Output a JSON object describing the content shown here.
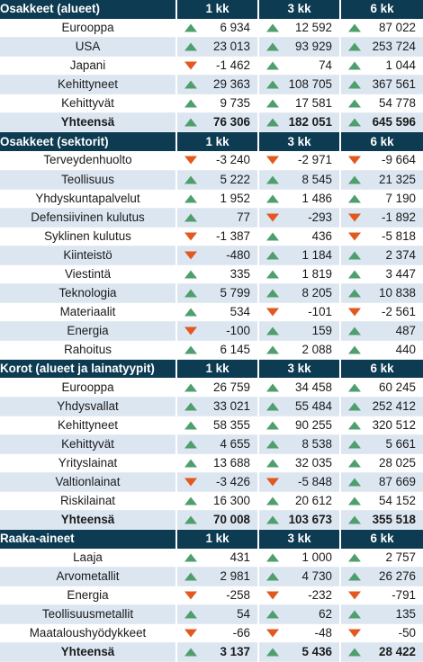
{
  "colors": {
    "header_bg": "#0d3b52",
    "row_alt_bg": "#dce6f1",
    "up": "#4f9e6e",
    "down": "#e2581f"
  },
  "sections": [
    {
      "id": "osakkeet-alueet",
      "title": "Osakkeet (alueet)",
      "periods": [
        "1 kk",
        "3 kk",
        "6 kk"
      ],
      "rows": [
        {
          "label": "Eurooppa",
          "values": [
            "6 934",
            "12 592",
            "87 022"
          ],
          "dirs": [
            "up",
            "up",
            "up"
          ]
        },
        {
          "label": "USA",
          "values": [
            "23 013",
            "93 929",
            "253 724"
          ],
          "dirs": [
            "up",
            "up",
            "up"
          ]
        },
        {
          "label": "Japani",
          "values": [
            "-1 462",
            "74",
            "1 044"
          ],
          "dirs": [
            "down",
            "up",
            "up"
          ]
        },
        {
          "label": "Kehittyneet",
          "values": [
            "29 363",
            "108 705",
            "367 561"
          ],
          "dirs": [
            "up",
            "up",
            "up"
          ]
        },
        {
          "label": "Kehittyvät",
          "values": [
            "9 735",
            "17 581",
            "54 778"
          ],
          "dirs": [
            "up",
            "up",
            "up"
          ]
        },
        {
          "label": "Yhteensä",
          "values": [
            "76 306",
            "182 051",
            "645 596"
          ],
          "dirs": [
            "up",
            "up",
            "up"
          ],
          "total": true
        }
      ]
    },
    {
      "id": "osakkeet-sektorit",
      "title": "Osakkeet (sektorit)",
      "periods": [
        "1 kk",
        "3 kk",
        "6 kk"
      ],
      "rows": [
        {
          "label": "Terveydenhuolto",
          "values": [
            "-3 240",
            "-2 971",
            "-9 664"
          ],
          "dirs": [
            "down",
            "down",
            "down"
          ]
        },
        {
          "label": "Teollisuus",
          "values": [
            "5 222",
            "8 545",
            "21 325"
          ],
          "dirs": [
            "up",
            "up",
            "up"
          ]
        },
        {
          "label": "Yhdyskuntapalvelut",
          "values": [
            "1 952",
            "1 486",
            "7 190"
          ],
          "dirs": [
            "up",
            "up",
            "up"
          ]
        },
        {
          "label": "Defensiivinen kulutus",
          "values": [
            "77",
            "-293",
            "-1 892"
          ],
          "dirs": [
            "up",
            "down",
            "down"
          ]
        },
        {
          "label": "Syklinen kulutus",
          "values": [
            "-1 387",
            "436",
            "-5 818"
          ],
          "dirs": [
            "down",
            "up",
            "down"
          ]
        },
        {
          "label": "Kiinteistö",
          "values": [
            "-480",
            "1 184",
            "2 374"
          ],
          "dirs": [
            "down",
            "up",
            "up"
          ]
        },
        {
          "label": "Viestintä",
          "values": [
            "335",
            "1 819",
            "3 447"
          ],
          "dirs": [
            "up",
            "up",
            "up"
          ]
        },
        {
          "label": "Teknologia",
          "values": [
            "5 799",
            "8 205",
            "10 838"
          ],
          "dirs": [
            "up",
            "up",
            "up"
          ]
        },
        {
          "label": "Materiaalit",
          "values": [
            "534",
            "-101",
            "-2 561"
          ],
          "dirs": [
            "up",
            "down",
            "down"
          ]
        },
        {
          "label": "Energia",
          "values": [
            "-100",
            "159",
            "487"
          ],
          "dirs": [
            "down",
            "up",
            "up"
          ]
        },
        {
          "label": "Rahoitus",
          "values": [
            "6 145",
            "2 088",
            "440"
          ],
          "dirs": [
            "up",
            "up",
            "up"
          ]
        }
      ]
    },
    {
      "id": "korot",
      "title": "Korot (alueet ja lainatyypit)",
      "periods": [
        "1 kk",
        "3 kk",
        "6 kk"
      ],
      "rows": [
        {
          "label": "Eurooppa",
          "values": [
            "26 759",
            "34 458",
            "60 245"
          ],
          "dirs": [
            "up",
            "up",
            "up"
          ]
        },
        {
          "label": "Yhdysvallat",
          "values": [
            "33 021",
            "55 484",
            "252 412"
          ],
          "dirs": [
            "up",
            "up",
            "up"
          ]
        },
        {
          "label": "Kehittyneet",
          "values": [
            "58 355",
            "90 255",
            "320 512"
          ],
          "dirs": [
            "up",
            "up",
            "up"
          ]
        },
        {
          "label": "Kehittyvät",
          "values": [
            "4 655",
            "8 538",
            "5 661"
          ],
          "dirs": [
            "up",
            "up",
            "up"
          ]
        },
        {
          "label": "Yrityslainat",
          "values": [
            "13 688",
            "32 035",
            "28 025"
          ],
          "dirs": [
            "up",
            "up",
            "up"
          ]
        },
        {
          "label": "Valtionlainat",
          "values": [
            "-3 426",
            "-5 848",
            "87 669"
          ],
          "dirs": [
            "down",
            "down",
            "up"
          ]
        },
        {
          "label": "Riskilainat",
          "values": [
            "16 300",
            "20 612",
            "54 152"
          ],
          "dirs": [
            "up",
            "up",
            "up"
          ]
        },
        {
          "label": "Yhteensä",
          "values": [
            "70 008",
            "103 673",
            "355 518"
          ],
          "dirs": [
            "up",
            "up",
            "up"
          ],
          "total": true
        }
      ]
    },
    {
      "id": "raaka-aineet",
      "title": "Raaka-aineet",
      "periods": [
        "1 kk",
        "3 kk",
        "6 kk"
      ],
      "rows": [
        {
          "label": "Laaja",
          "values": [
            "431",
            "1 000",
            "2 757"
          ],
          "dirs": [
            "up",
            "up",
            "up"
          ]
        },
        {
          "label": "Arvometallit",
          "values": [
            "2 981",
            "4 730",
            "26 276"
          ],
          "dirs": [
            "up",
            "up",
            "up"
          ]
        },
        {
          "label": "Energia",
          "values": [
            "-258",
            "-232",
            "-791"
          ],
          "dirs": [
            "down",
            "down",
            "down"
          ]
        },
        {
          "label": "Teollisuusmetallit",
          "values": [
            "54",
            "62",
            "135"
          ],
          "dirs": [
            "up",
            "up",
            "up"
          ]
        },
        {
          "label": "Maataloushyödykkeet",
          "values": [
            "-66",
            "-48",
            "-50"
          ],
          "dirs": [
            "down",
            "down",
            "down"
          ]
        },
        {
          "label": "Yhteensä",
          "values": [
            "3 137",
            "5 436",
            "28 422"
          ],
          "dirs": [
            "up",
            "up",
            "up"
          ],
          "total": true
        }
      ]
    }
  ]
}
